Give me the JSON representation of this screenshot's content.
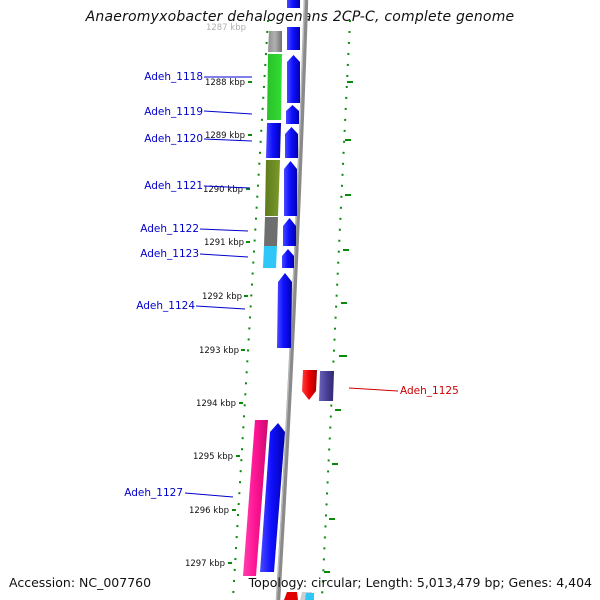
{
  "title": "Anaeromyxobacter dehalogenans 2CP-C, complete genome",
  "footer": {
    "accession": "Accession: NC_007760",
    "summary": "Topology: circular; Length: 5,013,479 bp; Genes: 4,404"
  },
  "ruler": [
    "1287 kbp",
    "1288 kbp",
    "1289 kbp",
    "1290 kbp",
    "1291 kbp",
    "1292 kbp",
    "1293 kbp",
    "1294 kbp",
    "1295 kbp",
    "1296 kbp",
    "1297 kbp"
  ],
  "genes": [
    {
      "label": "Adeh_1118",
      "strand": "forward",
      "color": "#0000cc"
    },
    {
      "label": "Adeh_1119",
      "strand": "forward",
      "color": "#0000cc"
    },
    {
      "label": "Adeh_1120",
      "strand": "forward",
      "color": "#0000cc"
    },
    {
      "label": "Adeh_1121",
      "strand": "forward",
      "color": "#0000cc"
    },
    {
      "label": "Adeh_1122",
      "strand": "forward",
      "color": "#0000cc"
    },
    {
      "label": "Adeh_1123",
      "strand": "forward",
      "color": "#0000cc"
    },
    {
      "label": "Adeh_1124",
      "strand": "forward",
      "color": "#0000cc"
    },
    {
      "label": "Adeh_1125",
      "strand": "reverse",
      "color": "#cc0000"
    },
    {
      "label": "Adeh_1127",
      "strand": "forward",
      "color": "#0000cc"
    }
  ]
}
